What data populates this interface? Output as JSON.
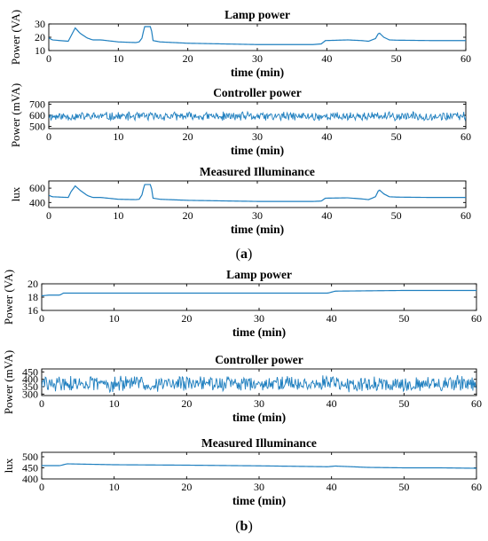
{
  "colors": {
    "line": "#1f7fbf",
    "axis": "#000000"
  },
  "figure": {
    "panels": [
      {
        "letter": "a"
      },
      {
        "letter": "b"
      }
    ]
  },
  "chart_data": [
    {
      "type": "line",
      "panel": "a",
      "title": "Lamp power",
      "xlabel": "time (min)",
      "ylabel": "Power (VA)",
      "xlim": [
        0,
        60
      ],
      "ylim": [
        10,
        30
      ],
      "xticks": [
        0,
        10,
        20,
        30,
        40,
        50,
        60
      ],
      "yticks": [
        30,
        20,
        10
      ],
      "series": [
        {
          "kind": "smooth",
          "x": [
            0,
            0.5,
            2.8,
            3.2,
            3.8,
            4.5,
            5.5,
            6.3,
            7.5,
            10,
            12.5,
            13.0,
            13.5,
            13.7,
            14.7,
            15.0,
            16,
            20,
            30,
            38,
            39.2,
            39.8,
            43,
            45,
            46,
            47,
            47.5,
            48.2,
            49,
            50,
            55,
            60
          ],
          "y": [
            19.5,
            18,
            17,
            21,
            27,
            23,
            19.5,
            18,
            18,
            16.5,
            16,
            16.5,
            20,
            28,
            28,
            17.5,
            16.5,
            15.5,
            14.5,
            14.5,
            15,
            17.5,
            18,
            17.5,
            17,
            19,
            23.5,
            20,
            18,
            17.8,
            17.5,
            17.5
          ]
        }
      ]
    },
    {
      "type": "line",
      "panel": "a",
      "title": "Controller power",
      "xlabel": "time (min)",
      "ylabel": "Power (mVA)",
      "xlim": [
        0,
        60
      ],
      "ylim": [
        480,
        720
      ],
      "xticks": [
        0,
        10,
        20,
        30,
        40,
        50,
        60
      ],
      "yticks": [
        700,
        600,
        500
      ],
      "series": [
        {
          "kind": "noise",
          "n": 600,
          "base": 590,
          "amp": 45,
          "seed": 11
        }
      ]
    },
    {
      "type": "line",
      "panel": "a",
      "title": "Measured Illuminance",
      "xlabel": "time (min)",
      "ylabel": "lux",
      "xlim": [
        0,
        60
      ],
      "ylim": [
        330,
        700
      ],
      "xticks": [
        0,
        10,
        20,
        30,
        40,
        50,
        60
      ],
      "yticks": [
        600,
        400
      ],
      "series": [
        {
          "kind": "smooth",
          "x": [
            0,
            0.5,
            2.8,
            3.2,
            3.8,
            4.5,
            5.5,
            6.3,
            7.5,
            10,
            12.5,
            13.0,
            13.5,
            13.7,
            14.7,
            15.0,
            16,
            20,
            30,
            38,
            39.2,
            39.8,
            43,
            45,
            46,
            47,
            47.5,
            48.2,
            49,
            50,
            55,
            60
          ],
          "y": [
            500,
            480,
            470,
            550,
            630,
            570,
            500,
            470,
            470,
            445,
            440,
            445,
            520,
            650,
            650,
            460,
            445,
            430,
            415,
            415,
            420,
            460,
            465,
            450,
            440,
            480,
            580,
            520,
            480,
            475,
            470,
            470
          ]
        }
      ]
    },
    {
      "type": "line",
      "panel": "b",
      "title": "Lamp power",
      "xlabel": "time (min)",
      "ylabel": "Power (VA)",
      "xlim": [
        0,
        60
      ],
      "ylim": [
        16,
        20
      ],
      "xticks": [
        0,
        10,
        20,
        30,
        40,
        50,
        60
      ],
      "yticks": [
        20,
        18,
        16
      ],
      "series": [
        {
          "kind": "smooth",
          "x": [
            0,
            1,
            2.5,
            3,
            4,
            10,
            20,
            30,
            39.5,
            40.5,
            50,
            60
          ],
          "y": [
            18.2,
            18.3,
            18.3,
            18.6,
            18.6,
            18.6,
            18.6,
            18.6,
            18.6,
            18.9,
            19.0,
            19.0
          ]
        }
      ]
    },
    {
      "type": "line",
      "panel": "b",
      "title": "Controller power",
      "xlabel": "time (min)",
      "ylabel": "Power (mVA)",
      "xlim": [
        0,
        60
      ],
      "ylim": [
        290,
        470
      ],
      "xticks": [
        0,
        10,
        20,
        30,
        40,
        50,
        60
      ],
      "yticks": [
        450,
        400,
        350,
        300
      ],
      "series": [
        {
          "kind": "noise",
          "n": 600,
          "base": 370,
          "amp": 60,
          "seed": 29
        }
      ]
    },
    {
      "type": "line",
      "panel": "b",
      "title": "Measured Illuminance",
      "xlabel": "time (min)",
      "ylabel": "lux",
      "xlim": [
        0,
        60
      ],
      "ylim": [
        400,
        520
      ],
      "xticks": [
        0,
        10,
        20,
        30,
        40,
        50,
        60
      ],
      "yticks": [
        500,
        450,
        400
      ],
      "series": [
        {
          "kind": "smooth",
          "x": [
            0,
            2.5,
            3.5,
            10,
            20,
            30,
            39.5,
            40.5,
            45,
            50,
            55,
            60
          ],
          "y": [
            460,
            460,
            468,
            464,
            462,
            459,
            455,
            458,
            452,
            450,
            450,
            448
          ]
        }
      ]
    }
  ]
}
